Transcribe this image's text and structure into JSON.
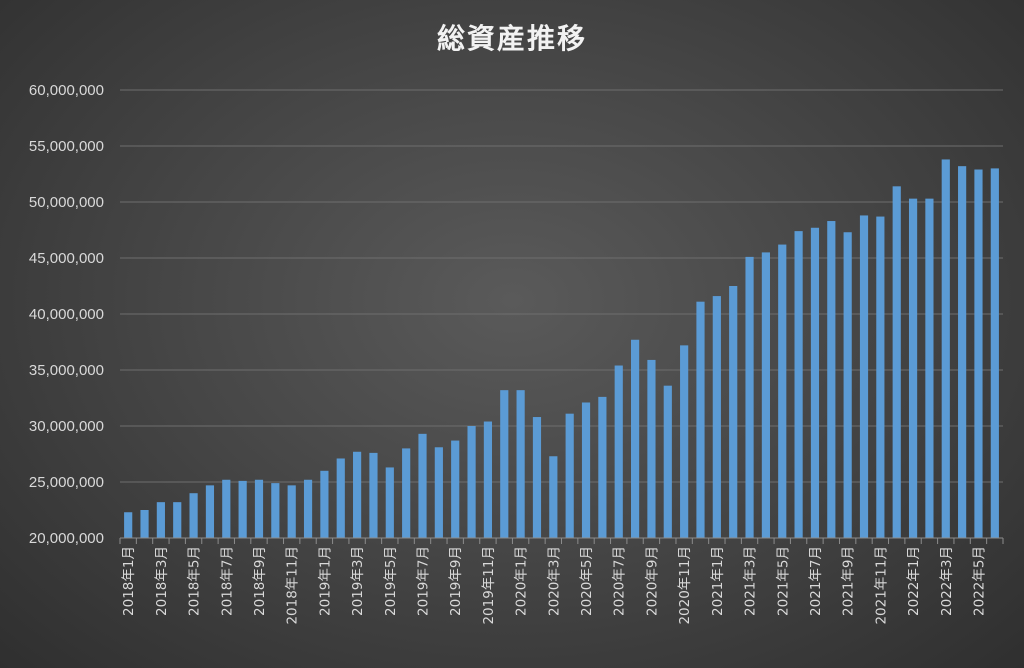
{
  "chart_data": {
    "type": "bar",
    "title": "総資産推移",
    "xlabel": "",
    "ylabel": "",
    "ylim": [
      20000000,
      60000000
    ],
    "ytick_values": [
      20000000,
      25000000,
      30000000,
      35000000,
      40000000,
      45000000,
      50000000,
      55000000,
      60000000
    ],
    "ytick_labels": [
      "20,000,000",
      "25,000,000",
      "30,000,000",
      "35,000,000",
      "40,000,000",
      "45,000,000",
      "50,000,000",
      "55,000,000",
      "60,000,000"
    ],
    "grid": true,
    "bar_color": "#5b9bd5",
    "categories": [
      "2018年1月",
      "2018年2月",
      "2018年3月",
      "2018年4月",
      "2018年5月",
      "2018年6月",
      "2018年7月",
      "2018年8月",
      "2018年9月",
      "2018年10月",
      "2018年11月",
      "2018年12月",
      "2019年1月",
      "2019年2月",
      "2019年3月",
      "2019年4月",
      "2019年5月",
      "2019年6月",
      "2019年7月",
      "2019年8月",
      "2019年9月",
      "2019年10月",
      "2019年11月",
      "2019年12月",
      "2020年1月",
      "2020年2月",
      "2020年3月",
      "2020年4月",
      "2020年5月",
      "2020年6月",
      "2020年7月",
      "2020年8月",
      "2020年9月",
      "2020年10月",
      "2020年11月",
      "2020年12月",
      "2021年1月",
      "2021年2月",
      "2021年3月",
      "2021年4月",
      "2021年5月",
      "2021年6月",
      "2021年7月",
      "2021年8月",
      "2021年9月",
      "2021年10月",
      "2021年11月",
      "2021年12月",
      "2022年1月",
      "2022年2月",
      "2022年3月",
      "2022年4月",
      "2022年5月",
      "2022年6月"
    ],
    "tick_labels_shown": [
      "2018年1月",
      "2018年3月",
      "2018年5月",
      "2018年7月",
      "2018年9月",
      "2018年11月",
      "2019年1月",
      "2019年3月",
      "2019年5月",
      "2019年7月",
      "2019年9月",
      "2019年11月",
      "2020年1月",
      "2020年3月",
      "2020年5月",
      "2020年7月",
      "2020年9月",
      "2020年11月",
      "2021年1月",
      "2021年3月",
      "2021年5月",
      "2021年7月",
      "2021年9月",
      "2021年11月",
      "2022年1月",
      "2022年3月",
      "2022年5月"
    ],
    "values": [
      22300000,
      22500000,
      23200000,
      23200000,
      24000000,
      24700000,
      25200000,
      25100000,
      25200000,
      24900000,
      24700000,
      25200000,
      26000000,
      27100000,
      27700000,
      27600000,
      26300000,
      28000000,
      29300000,
      28100000,
      28700000,
      30000000,
      30400000,
      33200000,
      33200000,
      30800000,
      27300000,
      31100000,
      32100000,
      32600000,
      35400000,
      37700000,
      35900000,
      33600000,
      37200000,
      41100000,
      41600000,
      42500000,
      45100000,
      45500000,
      46200000,
      47400000,
      47700000,
      48300000,
      47300000,
      48800000,
      48700000,
      51400000,
      50300000,
      50300000,
      53800000,
      53200000,
      52900000,
      53000000
    ]
  }
}
